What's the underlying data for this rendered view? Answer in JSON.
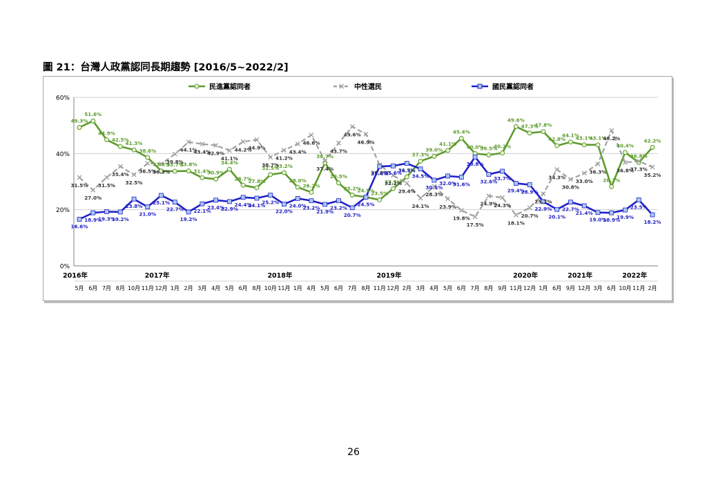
{
  "figure": {
    "title": "圖 21：台灣人政黨認同長期趨勢  [2016/5~2022/2]"
  },
  "page": {
    "number": "26"
  },
  "colors": {
    "dpp": "#5d9b2c",
    "swing": "#a0a0a0",
    "kmt": "#2020c8",
    "grid": "#d0d0d0"
  },
  "chart_data": {
    "type": "line",
    "ylim": [
      0,
      60
    ],
    "y_ticks": [
      "0%",
      "20%",
      "40%",
      "60%"
    ],
    "grid": "horizontal",
    "legend_position": "top",
    "categories": [
      "5月",
      "6月",
      "7月",
      "8月",
      "10月",
      "11月",
      "12月",
      "1月",
      "2月",
      "3月",
      "4月",
      "5月",
      "6月",
      "8月",
      "10月",
      "11月",
      "1月",
      "4月",
      "5月",
      "6月",
      "7月",
      "8月",
      "11月",
      "12月",
      "2月",
      "3月",
      "4月",
      "5月",
      "6月",
      "7月",
      "8月",
      "9月",
      "11月",
      "12月",
      "1月",
      "6月",
      "9月",
      "12月",
      "3月",
      "6月",
      "10月",
      "11月",
      "2月"
    ],
    "years": [
      {
        "label": "2016年",
        "index": 0
      },
      {
        "label": "2017年",
        "index": 6
      },
      {
        "label": "2018年",
        "index": 15
      },
      {
        "label": "2019年",
        "index": 23
      },
      {
        "label": "2020年",
        "index": 33
      },
      {
        "label": "2021年",
        "index": 37
      },
      {
        "label": "2022年",
        "index": 41
      }
    ],
    "series": [
      {
        "name": "民進黨認同者",
        "key": "dpp",
        "values": [
          49.3,
          51.6,
          44.9,
          42.5,
          41.3,
          38.6,
          33.8,
          33.7,
          33.8,
          31.4,
          30.9,
          34.4,
          28.7,
          27.8,
          32.5,
          33.2,
          28.0,
          26.2,
          36.7,
          29.5,
          25.2,
          24.5,
          23.5,
          27.5,
          31.7,
          37.3,
          39.0,
          41.1,
          45.4,
          40.0,
          39.5,
          40.2,
          49.6,
          47.3,
          47.8,
          42.8,
          44.1,
          43.1,
          43.1,
          28.2,
          40.4,
          36.8,
          42.2
        ],
        "labels": [
          "49.3%",
          "51.6%",
          "44.9%",
          "42.5%",
          "41.3%",
          "38.6%",
          "33.8%",
          "33.7%",
          "33.8%",
          "31.4%",
          "30.9%",
          "34.4%",
          "28.7%",
          "27.8%",
          "32.5%",
          "33.2%",
          "28.0%",
          "26.2%",
          "36.7%",
          "29.5%",
          "25.2%",
          "24.5%",
          "23.5%",
          "27.5%",
          "31.7%",
          "37.3%",
          "39.0%",
          "41.1%",
          "45.4%",
          "40.0%",
          "39.5%",
          "40.2%",
          "49.6%",
          "47.3%",
          "47.8%",
          "42.8%",
          "44.1%",
          "43.1%",
          "43.1%",
          "28.2%",
          "40.4%",
          "36.8%",
          "42.2%"
        ]
      },
      {
        "name": "中性選民",
        "key": "swing",
        "values": [
          31.5,
          27.0,
          31.5,
          35.4,
          32.5,
          36.5,
          36.3,
          39.8,
          44.1,
          43.4,
          42.9,
          41.1,
          44.2,
          44.9,
          38.7,
          41.2,
          43.4,
          46.6,
          37.4,
          43.7,
          49.6,
          46.9,
          36.0,
          32.2,
          29.4,
          24.1,
          28.3,
          23.9,
          19.8,
          17.5,
          24.9,
          24.3,
          18.1,
          20.7,
          25.7,
          34.3,
          30.8,
          33.0,
          36.3,
          48.2,
          36.8,
          37.3,
          35.2
        ],
        "labels": [
          "31.5%",
          "27.0%",
          "31.5%",
          "35.4%",
          "32.5%",
          "36.5%",
          "36.3%",
          "39.8%",
          "44.1%",
          "43.4%",
          "42.9%",
          "41.1%",
          "44.2%",
          "44.9%",
          "38.7%",
          "41.2%",
          "43.4%",
          "46.6%",
          "37.4%",
          "43.7%",
          "49.6%",
          "46.9%",
          "36.0%",
          "32.2%",
          "29.4%",
          "24.1%",
          "28.3%",
          "23.9%",
          "19.8%",
          "17.5%",
          "24.9%",
          "24.3%",
          "18.1%",
          "20.7%",
          "25.7%",
          "34.3%",
          "30.8%",
          "33.0%",
          "36.3%",
          "48.2%",
          "36.8%",
          "37.3%",
          "35.2%"
        ]
      },
      {
        "name": "國民黨認同者",
        "key": "kmt",
        "values": [
          16.6,
          18.9,
          19.3,
          19.2,
          23.8,
          21.0,
          25.1,
          22.7,
          19.2,
          22.1,
          23.4,
          22.9,
          24.4,
          24.1,
          25.2,
          22.0,
          24.0,
          23.2,
          21.9,
          23.2,
          20.7,
          24.5,
          35.4,
          35.6,
          36.5,
          34.5,
          30.5,
          32.0,
          31.6,
          38.8,
          32.6,
          33.7,
          29.4,
          28.9,
          22.9,
          20.1,
          22.7,
          21.4,
          19.0,
          18.9,
          19.9,
          23.5,
          18.2
        ],
        "labels": [
          "16.6%",
          "18.9%",
          "19.3%",
          "19.2%",
          "23.8%",
          "21.0%",
          "25.1%",
          "22.7%",
          "19.2%",
          "22.1%",
          "23.4%",
          "22.9%",
          "24.4%",
          "24.1%",
          "25.2%",
          "22.0%",
          "24.0%",
          "23.2%",
          "21.9%",
          "23.2%",
          "20.7%",
          "24.5%",
          "35.4%",
          "35.6%",
          "36.5%",
          "34.5%",
          "30.5%",
          "32.0%",
          "31.6%",
          "38.8%",
          "32.6%",
          "33.7%",
          "29.4%",
          "28.9%",
          "22.9%",
          "20.1%",
          "22.7%",
          "21.4%",
          "19.0%",
          "18.9%",
          "19.9%",
          "23.5%",
          "18.2%"
        ]
      }
    ]
  }
}
